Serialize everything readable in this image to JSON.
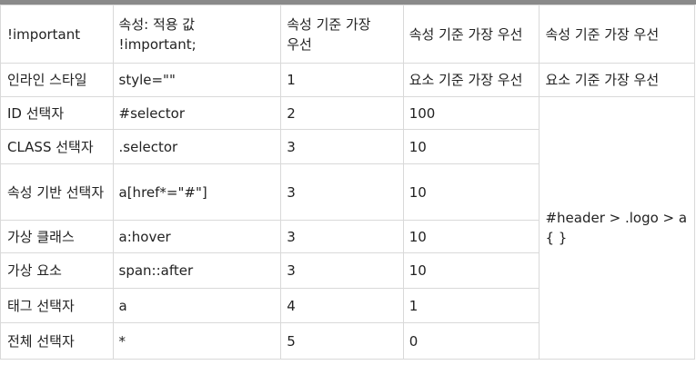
{
  "table": {
    "header": {
      "col1": "!important",
      "col2_line1": "속성: 적용 값",
      "col2_line2": "!important;",
      "col3": "속성 기준 가장 우선",
      "col4": "속성 기준 가장 우선",
      "col5": "속성 기준 가장 우선"
    },
    "rows": [
      {
        "name": "인라인 스타일",
        "syntax": "style=\"\"",
        "rank": "1",
        "score": "요소 기준 가장 우선",
        "example": "요소 기준 가장 우선"
      },
      {
        "name": "ID 선택자",
        "syntax": "#selector",
        "rank": "2",
        "score": "100"
      },
      {
        "name": "CLASS 선택자",
        "syntax": ".selector",
        "rank": "3",
        "score": "10"
      },
      {
        "name": "속성 기반 선택자",
        "syntax": "a[href*=\"#\"]",
        "rank": "3",
        "score": "10"
      },
      {
        "name": "가상 클래스",
        "syntax": "a:hover",
        "rank": "3",
        "score": "10"
      },
      {
        "name": "가상 요소",
        "syntax": "span::after",
        "rank": "3",
        "score": "10"
      },
      {
        "name": "태그 선택자",
        "syntax": "a",
        "rank": "4",
        "score": "1"
      },
      {
        "name": "전체 선택자",
        "syntax": "*",
        "rank": "5",
        "score": "0"
      }
    ],
    "merged_example": "#header > .logo > a { }"
  }
}
